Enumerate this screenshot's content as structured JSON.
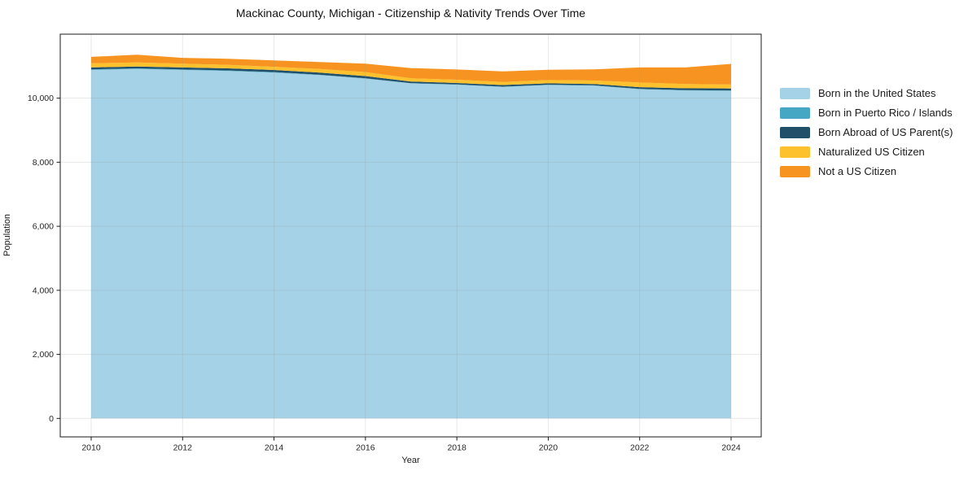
{
  "title": "Mackinac County, Michigan - Citizenship & Nativity Trends Over Time",
  "chart_data": {
    "type": "area",
    "stacked": true,
    "title": "Mackinac County, Michigan - Citizenship & Nativity Trends Over Time",
    "xlabel": "Year",
    "ylabel": "Population",
    "x": [
      2010,
      2011,
      2012,
      2013,
      2014,
      2015,
      2016,
      2017,
      2018,
      2019,
      2020,
      2021,
      2022,
      2023,
      2024
    ],
    "series": [
      {
        "name": "Born in the United States",
        "color": "#a5d2e7",
        "values": [
          10880,
          10910,
          10880,
          10850,
          10800,
          10720,
          10610,
          10460,
          10420,
          10350,
          10410,
          10390,
          10280,
          10240,
          10230
        ]
      },
      {
        "name": "Born in Puerto Rico / Islands",
        "color": "#45a7c4",
        "values": [
          20,
          20,
          15,
          15,
          15,
          10,
          10,
          10,
          10,
          10,
          10,
          10,
          10,
          10,
          10
        ]
      },
      {
        "name": "Born Abroad of US Parent(s)",
        "color": "#22506a",
        "values": [
          60,
          60,
          65,
          65,
          65,
          70,
          70,
          50,
          45,
          50,
          45,
          40,
          55,
          60,
          65
        ]
      },
      {
        "name": "Naturalized US Citizen",
        "color": "#fdc12e",
        "values": [
          130,
          125,
          115,
          110,
          100,
          110,
          125,
          100,
          100,
          95,
          100,
          110,
          145,
          130,
          120
        ]
      },
      {
        "name": "Not a US Citizen",
        "color": "#f79421",
        "values": [
          200,
          240,
          185,
          190,
          200,
          220,
          260,
          320,
          320,
          330,
          320,
          350,
          470,
          520,
          645
        ]
      }
    ],
    "x_ticks": [
      2010,
      2012,
      2014,
      2016,
      2018,
      2020,
      2022,
      2024
    ],
    "x_tick_labels": [
      "2010",
      "2012",
      "2014",
      "2016",
      "2018",
      "2020",
      "2022",
      "2024"
    ],
    "y_ticks": [
      0,
      2000,
      4000,
      6000,
      8000,
      10000
    ],
    "y_tick_labels": [
      "0",
      "2,000",
      "4,000",
      "6,000",
      "8,000",
      "10,000"
    ],
    "ylim": [
      -585,
      12010
    ],
    "grid": true,
    "legend_position": "right-outside"
  },
  "colors": {
    "spine": "#1a1a1a",
    "tick_text": "#262626",
    "grid": "rgba(150,150,150,0.22)"
  }
}
